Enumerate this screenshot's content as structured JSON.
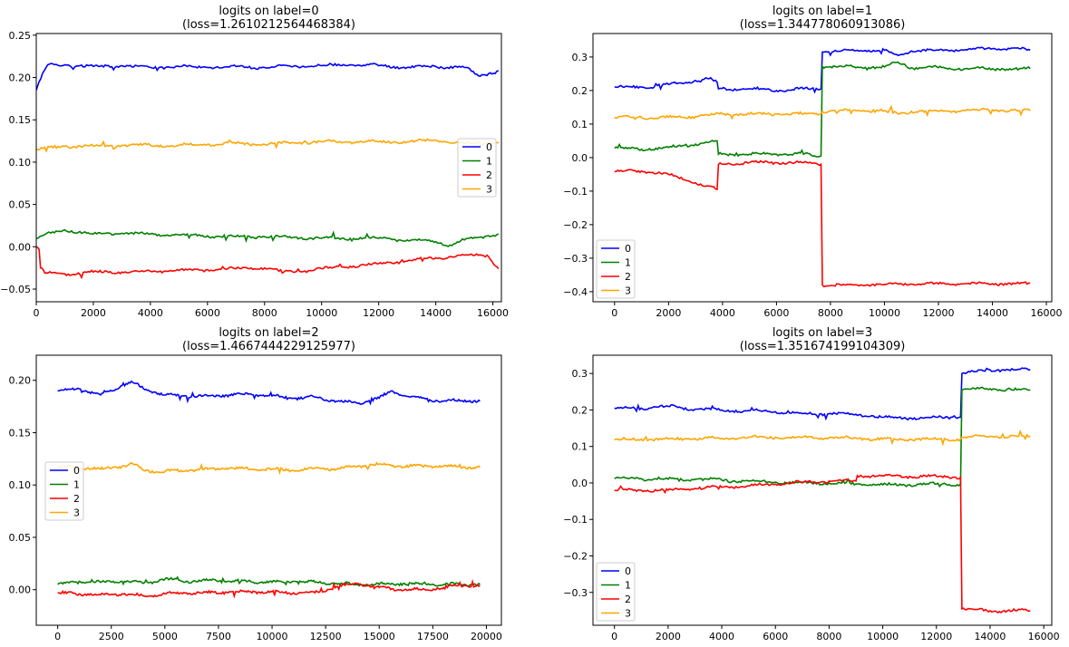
{
  "figure": {
    "background": "#ffffff"
  },
  "series_colors": [
    "#0000ff",
    "#008000",
    "#ff0000",
    "#ffa500"
  ],
  "chart_data": [
    {
      "type": "line",
      "title": "logits  on label=0",
      "subtitle": "(loss=1.2610212564468384)",
      "xlim": [
        0,
        16300
      ],
      "ylim": [
        -0.065,
        0.252
      ],
      "xticks": [
        0,
        2000,
        4000,
        6000,
        8000,
        10000,
        12000,
        14000,
        16000
      ],
      "xtick_labels": [
        "0",
        "2000",
        "4000",
        "6000",
        "8000",
        "10000",
        "12000",
        "14000",
        "16000"
      ],
      "yticks": [
        -0.05,
        0.0,
        0.05,
        0.1,
        0.15,
        0.2,
        0.25
      ],
      "ytick_labels": [
        "−0.05",
        "0.00",
        "0.05",
        "0.10",
        "0.15",
        "0.20",
        "0.25"
      ],
      "legend": "center-right",
      "series": [
        {
          "name": "0",
          "color": "#0000ff",
          "x": [
            0,
            100,
            400,
            1000,
            2000,
            3000,
            4000,
            5000,
            6000,
            7000,
            8000,
            9000,
            10000,
            11000,
            12000,
            13000,
            14000,
            15000,
            15500,
            16200
          ],
          "y": [
            0.185,
            0.195,
            0.215,
            0.215,
            0.213,
            0.214,
            0.212,
            0.213,
            0.212,
            0.213,
            0.212,
            0.213,
            0.214,
            0.215,
            0.214,
            0.212,
            0.213,
            0.212,
            0.202,
            0.208
          ]
        },
        {
          "name": "1",
          "color": "#008000",
          "x": [
            0,
            200,
            1000,
            2000,
            3000,
            4000,
            5000,
            6000,
            7000,
            8000,
            9000,
            10000,
            11000,
            12000,
            13000,
            14000,
            14500,
            15000,
            16200
          ],
          "y": [
            0.01,
            0.013,
            0.02,
            0.015,
            0.016,
            0.015,
            0.014,
            0.013,
            0.012,
            0.012,
            0.011,
            0.01,
            0.01,
            0.01,
            0.008,
            0.006,
            0.002,
            0.008,
            0.015
          ]
        },
        {
          "name": "2",
          "color": "#ff0000",
          "x": [
            0,
            100,
            150,
            300,
            1000,
            2000,
            3000,
            4000,
            5000,
            6000,
            7000,
            8000,
            8500,
            9000,
            10000,
            11000,
            12000,
            13000,
            14000,
            15000,
            15800,
            16200
          ],
          "y": [
            0.0,
            -0.003,
            -0.025,
            -0.031,
            -0.032,
            -0.03,
            -0.03,
            -0.029,
            -0.028,
            -0.027,
            -0.026,
            -0.025,
            -0.029,
            -0.03,
            -0.026,
            -0.023,
            -0.02,
            -0.017,
            -0.013,
            -0.01,
            -0.01,
            -0.026
          ]
        },
        {
          "name": "3",
          "color": "#ffa500",
          "x": [
            0,
            1000,
            2000,
            3000,
            4000,
            5000,
            6000,
            7000,
            8000,
            9000,
            10000,
            11000,
            12000,
            13000,
            14000,
            15000,
            16200
          ],
          "y": [
            0.115,
            0.119,
            0.119,
            0.12,
            0.12,
            0.12,
            0.121,
            0.122,
            0.121,
            0.123,
            0.124,
            0.124,
            0.124,
            0.124,
            0.126,
            0.122,
            0.123
          ]
        }
      ]
    },
    {
      "type": "line",
      "title": "logits  on label=1",
      "subtitle": "(loss=1.344778060913086)",
      "xlim": [
        -800,
        16200
      ],
      "ylim": [
        -0.43,
        0.37
      ],
      "xticks": [
        0,
        2000,
        4000,
        6000,
        8000,
        10000,
        12000,
        14000,
        16000
      ],
      "xtick_labels": [
        "0",
        "2000",
        "4000",
        "6000",
        "8000",
        "10000",
        "12000",
        "14000",
        "16000"
      ],
      "yticks": [
        -0.4,
        -0.3,
        -0.2,
        -0.1,
        0.0,
        0.1,
        0.2,
        0.3
      ],
      "ytick_labels": [
        "−0.4",
        "−0.3",
        "−0.2",
        "−0.1",
        "0.0",
        "0.1",
        "0.2",
        "0.3"
      ],
      "legend": "lower-left",
      "series": [
        {
          "name": "0",
          "color": "#0000ff",
          "x": [
            0,
            1000,
            2000,
            3000,
            3500,
            3800,
            3850,
            5000,
            6000,
            7000,
            7650,
            7700,
            9000,
            10000,
            10500,
            11000,
            12000,
            13000,
            14000,
            15000,
            15400
          ],
          "y": [
            0.21,
            0.21,
            0.218,
            0.23,
            0.235,
            0.225,
            0.205,
            0.205,
            0.2,
            0.205,
            0.205,
            0.315,
            0.32,
            0.32,
            0.305,
            0.318,
            0.32,
            0.322,
            0.325,
            0.325,
            0.32
          ]
        },
        {
          "name": "1",
          "color": "#008000",
          "x": [
            0,
            1000,
            2000,
            3000,
            3800,
            3850,
            5000,
            6000,
            7000,
            7650,
            7700,
            9000,
            10000,
            10500,
            11000,
            12000,
            13000,
            14000,
            15000,
            15400
          ],
          "y": [
            0.028,
            0.025,
            0.03,
            0.04,
            0.05,
            0.01,
            0.01,
            0.01,
            0.01,
            0.005,
            0.272,
            0.27,
            0.27,
            0.285,
            0.268,
            0.268,
            0.265,
            0.265,
            0.265,
            0.265
          ]
        },
        {
          "name": "2",
          "color": "#ff0000",
          "x": [
            0,
            1000,
            2000,
            3000,
            3800,
            3850,
            5000,
            6000,
            7000,
            7650,
            7700,
            9000,
            10000,
            11000,
            12000,
            13000,
            14000,
            15000,
            15400
          ],
          "y": [
            -0.042,
            -0.04,
            -0.05,
            -0.075,
            -0.095,
            -0.02,
            -0.015,
            -0.015,
            -0.015,
            -0.02,
            -0.38,
            -0.38,
            -0.378,
            -0.377,
            -0.377,
            -0.376,
            -0.376,
            -0.376,
            -0.375
          ]
        },
        {
          "name": "3",
          "color": "#ffa500",
          "x": [
            0,
            1000,
            2000,
            3000,
            4000,
            5000,
            6000,
            7000,
            7650,
            7700,
            9000,
            10000,
            10500,
            11000,
            12000,
            13000,
            14000,
            15000,
            15400
          ],
          "y": [
            0.12,
            0.12,
            0.12,
            0.123,
            0.13,
            0.13,
            0.13,
            0.13,
            0.13,
            0.138,
            0.14,
            0.14,
            0.13,
            0.138,
            0.138,
            0.14,
            0.142,
            0.14,
            0.14
          ]
        }
      ]
    },
    {
      "type": "line",
      "title": "logits  on label=2",
      "subtitle": "(loss=1.4667444229125977)",
      "xlim": [
        -1000,
        20700
      ],
      "ylim": [
        -0.034,
        0.224
      ],
      "xticks": [
        0,
        2500,
        5000,
        7500,
        10000,
        12500,
        15000,
        17500,
        20000
      ],
      "xtick_labels": [
        "0",
        "2500",
        "5000",
        "7500",
        "10000",
        "12500",
        "15000",
        "17500",
        "20000"
      ],
      "yticks": [
        0.0,
        0.05,
        0.1,
        0.15,
        0.2
      ],
      "ytick_labels": [
        "0.00",
        "0.05",
        "0.10",
        "0.15",
        "0.20"
      ],
      "legend": "center-left",
      "series": [
        {
          "name": "0",
          "color": "#0000ff",
          "x": [
            0,
            1000,
            2000,
            3000,
            3500,
            4000,
            5000,
            6000,
            7000,
            8000,
            9000,
            10000,
            11000,
            12000,
            13000,
            14000,
            15000,
            15600,
            16000,
            17000,
            18000,
            19000,
            19700
          ],
          "y": [
            0.19,
            0.192,
            0.186,
            0.195,
            0.198,
            0.192,
            0.186,
            0.185,
            0.185,
            0.186,
            0.187,
            0.185,
            0.183,
            0.184,
            0.18,
            0.178,
            0.183,
            0.19,
            0.186,
            0.183,
            0.18,
            0.181,
            0.18
          ]
        },
        {
          "name": "1",
          "color": "#008000",
          "x": [
            0,
            1000,
            2000,
            3000,
            4000,
            5000,
            6000,
            7000,
            8000,
            9000,
            10000,
            11000,
            12000,
            13000,
            14000,
            15000,
            16000,
            17000,
            18000,
            19000,
            19700
          ],
          "y": [
            0.005,
            0.008,
            0.007,
            0.008,
            0.006,
            0.01,
            0.008,
            0.009,
            0.008,
            0.008,
            0.007,
            0.008,
            0.007,
            0.006,
            0.005,
            0.005,
            0.006,
            0.005,
            0.005,
            0.005,
            0.005
          ]
        },
        {
          "name": "2",
          "color": "#ff0000",
          "x": [
            0,
            1000,
            2000,
            3000,
            4000,
            5000,
            6000,
            7000,
            8000,
            9000,
            10000,
            11000,
            12000,
            13000,
            14000,
            15000,
            16000,
            17000,
            18000,
            19000,
            19700
          ],
          "y": [
            -0.003,
            -0.004,
            -0.005,
            -0.004,
            -0.006,
            -0.004,
            -0.003,
            -0.003,
            -0.002,
            -0.002,
            -0.002,
            -0.003,
            -0.003,
            0.003,
            0.006,
            0.002,
            0.0,
            0.0,
            0.002,
            0.004,
            0.004
          ]
        },
        {
          "name": "3",
          "color": "#ffa500",
          "x": [
            0,
            1000,
            2000,
            3000,
            3500,
            4000,
            5000,
            6000,
            7000,
            8000,
            9000,
            10000,
            11000,
            12000,
            13000,
            14000,
            15000,
            16000,
            17000,
            18000,
            19000,
            19700
          ],
          "y": [
            0.117,
            0.117,
            0.115,
            0.118,
            0.12,
            0.114,
            0.113,
            0.114,
            0.115,
            0.116,
            0.115,
            0.115,
            0.114,
            0.116,
            0.115,
            0.118,
            0.12,
            0.118,
            0.118,
            0.118,
            0.117,
            0.117
          ]
        }
      ]
    },
    {
      "type": "line",
      "title": "logits  on label=3",
      "subtitle": "(loss=1.351674199104309)",
      "xlim": [
        -800,
        16300
      ],
      "ylim": [
        -0.39,
        0.35
      ],
      "xticks": [
        0,
        2000,
        4000,
        6000,
        8000,
        10000,
        12000,
        14000,
        16000
      ],
      "xtick_labels": [
        "0",
        "2000",
        "4000",
        "6000",
        "8000",
        "10000",
        "12000",
        "14000",
        "16000"
      ],
      "yticks": [
        -0.3,
        -0.2,
        -0.1,
        0.0,
        0.1,
        0.2,
        0.3
      ],
      "ytick_labels": [
        "−0.3",
        "−0.2",
        "−0.1",
        "0.0",
        "0.1",
        "0.2",
        "0.3"
      ],
      "legend": "lower-left",
      "series": [
        {
          "name": "0",
          "color": "#0000ff",
          "x": [
            0,
            1000,
            2000,
            3000,
            4000,
            5000,
            6000,
            7000,
            8000,
            9000,
            10000,
            11000,
            12000,
            12900,
            12950,
            13500,
            14000,
            14500,
            15000,
            15500
          ],
          "y": [
            0.205,
            0.205,
            0.21,
            0.202,
            0.2,
            0.198,
            0.195,
            0.19,
            0.19,
            0.188,
            0.18,
            0.178,
            0.18,
            0.18,
            0.3,
            0.305,
            0.31,
            0.31,
            0.31,
            0.31
          ]
        },
        {
          "name": "1",
          "color": "#008000",
          "x": [
            0,
            1000,
            2000,
            3000,
            4000,
            5000,
            6000,
            7000,
            8000,
            9000,
            10000,
            11000,
            12000,
            12900,
            12950,
            14000,
            15000,
            15500
          ],
          "y": [
            0.012,
            0.012,
            0.01,
            0.01,
            0.008,
            0.005,
            0.002,
            0.0,
            0.0,
            -0.003,
            -0.005,
            -0.005,
            -0.003,
            -0.003,
            0.255,
            0.258,
            0.255,
            0.255
          ]
        },
        {
          "name": "2",
          "color": "#ff0000",
          "x": [
            0,
            1000,
            2000,
            3000,
            4000,
            5000,
            6000,
            7000,
            8000,
            9000,
            9050,
            10000,
            11000,
            12000,
            12900,
            12950,
            14000,
            15000,
            15500
          ],
          "y": [
            -0.02,
            -0.02,
            -0.02,
            -0.015,
            -0.012,
            -0.008,
            -0.003,
            0.002,
            0.005,
            0.005,
            0.02,
            0.02,
            0.018,
            0.018,
            0.015,
            -0.345,
            -0.35,
            -0.35,
            -0.35
          ]
        },
        {
          "name": "3",
          "color": "#ffa500",
          "x": [
            0,
            1000,
            2000,
            3000,
            4000,
            5000,
            6000,
            7000,
            8000,
            9000,
            10000,
            11000,
            12000,
            12900,
            12950,
            14000,
            15000,
            15500
          ],
          "y": [
            0.118,
            0.12,
            0.12,
            0.122,
            0.122,
            0.125,
            0.125,
            0.125,
            0.124,
            0.123,
            0.12,
            0.12,
            0.12,
            0.12,
            0.125,
            0.128,
            0.128,
            0.128
          ]
        }
      ]
    }
  ]
}
